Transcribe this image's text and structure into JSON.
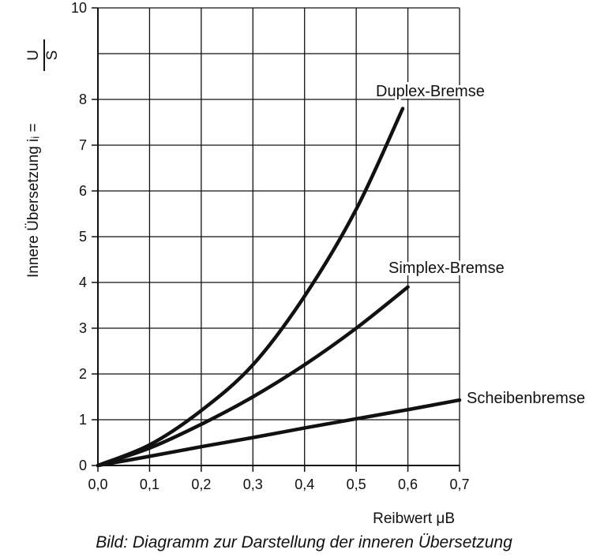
{
  "caption": "Bild: Diagramm zur Darstellung der inneren Übersetzung",
  "chart_data": {
    "type": "line",
    "xlabel": "Reibwert μB",
    "ylabel": "Innere Übersetzung iᵢ = U/S",
    "xlim": [
      0.0,
      0.7
    ],
    "ylim": [
      0,
      10
    ],
    "x_ticks": [
      "0,0",
      "0,1",
      "0,2",
      "0,3",
      "0,4",
      "0,5",
      "0,6",
      "0,7"
    ],
    "y_ticks": [
      "0",
      "1",
      "2",
      "3",
      "4",
      "5",
      "6",
      "7",
      "8",
      "10"
    ],
    "grid": true,
    "series": [
      {
        "name": "Duplex-Bremse",
        "x": [
          0.0,
          0.1,
          0.2,
          0.3,
          0.4,
          0.5,
          0.59
        ],
        "y": [
          0.0,
          0.45,
          1.2,
          2.2,
          3.7,
          5.6,
          7.8
        ]
      },
      {
        "name": "Simplex-Bremse",
        "x": [
          0.0,
          0.1,
          0.2,
          0.3,
          0.4,
          0.5,
          0.6
        ],
        "y": [
          0.0,
          0.38,
          0.9,
          1.5,
          2.2,
          3.0,
          3.9
        ]
      },
      {
        "name": "Scheibenbremse",
        "x": [
          0.0,
          0.1,
          0.2,
          0.3,
          0.4,
          0.5,
          0.6,
          0.7
        ],
        "y": [
          0.0,
          0.2,
          0.41,
          0.61,
          0.82,
          1.02,
          1.22,
          1.43
        ]
      }
    ]
  }
}
